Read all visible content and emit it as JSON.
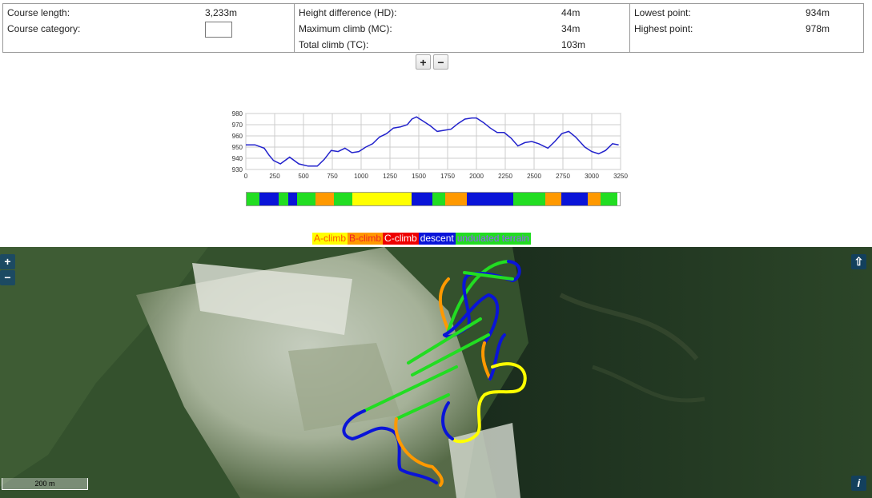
{
  "stats": {
    "course_length_label": "Course length:",
    "course_length_value": "3,233m",
    "course_category_label": "Course category:",
    "height_diff_label": "Height difference (HD):",
    "height_diff_value": "44m",
    "max_climb_label": "Maximum climb (MC):",
    "max_climb_value": "34m",
    "total_climb_label": "Total climb (TC):",
    "total_climb_value": "103m",
    "lowest_label": "Lowest point:",
    "lowest_value": "934m",
    "highest_label": "Highest point:",
    "highest_value": "978m"
  },
  "zoom": {
    "plus": "+",
    "minus": "−"
  },
  "chart_data": {
    "type": "line",
    "x": [
      0,
      80,
      160,
      200,
      240,
      300,
      380,
      460,
      540,
      620,
      680,
      740,
      800,
      860,
      920,
      980,
      1040,
      1100,
      1160,
      1220,
      1280,
      1340,
      1400,
      1440,
      1480,
      1540,
      1600,
      1660,
      1720,
      1780,
      1840,
      1900,
      1960,
      2000,
      2060,
      2120,
      2180,
      2240,
      2300,
      2360,
      2420,
      2480,
      2540,
      2620,
      2680,
      2740,
      2800,
      2860,
      2940,
      3000,
      3060,
      3120,
      3180,
      3233
    ],
    "series": [
      {
        "values": [
          952,
          952,
          949,
          943,
          938,
          935,
          941,
          935,
          933,
          933,
          939,
          947,
          946,
          949,
          945,
          946,
          950,
          953,
          959,
          962,
          967,
          968,
          970,
          975,
          977,
          973,
          969,
          964,
          965,
          966,
          971,
          975,
          976,
          976,
          972,
          967,
          963,
          963,
          958,
          951,
          954,
          955,
          953,
          949,
          955,
          962,
          964,
          959,
          950,
          946,
          944,
          947,
          953,
          952
        ]
      }
    ],
    "xticks": [
      0,
      250,
      500,
      750,
      1000,
      1250,
      1500,
      1750,
      2000,
      2250,
      2500,
      2750,
      3000,
      3250
    ],
    "yticks": [
      930,
      940,
      950,
      960,
      970,
      980
    ],
    "xlim": [
      0,
      3250
    ],
    "ylim": [
      930,
      980
    ],
    "grid": true
  },
  "terrain_segments": [
    {
      "type": "undulated",
      "from": 0,
      "to": 110
    },
    {
      "type": "descent",
      "from": 110,
      "to": 280
    },
    {
      "type": "undulated",
      "from": 280,
      "to": 360
    },
    {
      "type": "descent",
      "from": 360,
      "to": 440
    },
    {
      "type": "undulated",
      "from": 440,
      "to": 600
    },
    {
      "type": "B",
      "from": 600,
      "to": 760
    },
    {
      "type": "undulated",
      "from": 760,
      "to": 920
    },
    {
      "type": "A",
      "from": 920,
      "to": 1440
    },
    {
      "type": "descent",
      "from": 1440,
      "to": 1620
    },
    {
      "type": "undulated",
      "from": 1620,
      "to": 1730
    },
    {
      "type": "B",
      "from": 1730,
      "to": 1920
    },
    {
      "type": "descent",
      "from": 1920,
      "to": 2320
    },
    {
      "type": "undulated",
      "from": 2320,
      "to": 2600
    },
    {
      "type": "B",
      "from": 2600,
      "to": 2740
    },
    {
      "type": "descent",
      "from": 2740,
      "to": 2970
    },
    {
      "type": "B",
      "from": 2970,
      "to": 3080
    },
    {
      "type": "undulated",
      "from": 3080,
      "to": 3233
    }
  ],
  "legend": {
    "a_climb": "A-climb",
    "b_climb": "B-climb",
    "c_climb": "C-climb",
    "descent": "descent",
    "undulated": "undulated terrain"
  },
  "colors": {
    "a_climb": "#ffff00",
    "b_climb": "#ff9900",
    "c_climb": "#ee0000",
    "descent": "#0a14d8",
    "undulated": "#22dd22",
    "profile_line": "#2222cc"
  },
  "map": {
    "zoom_in": "+",
    "zoom_out": "−",
    "top_right_icon": "expand-up-icon",
    "info": "i",
    "scale": "200 m"
  }
}
